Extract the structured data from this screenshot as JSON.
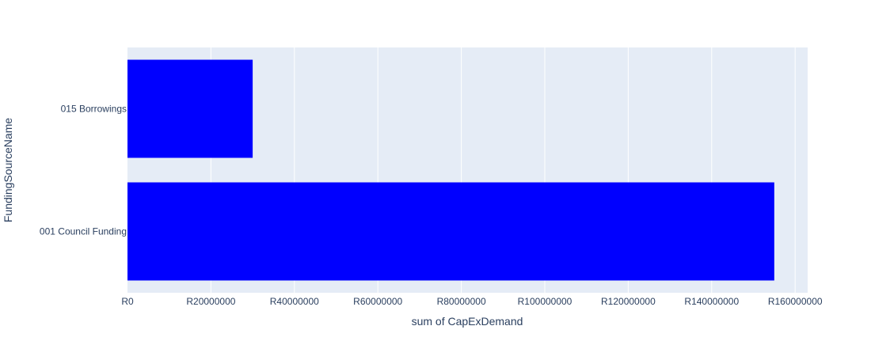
{
  "chart_data": {
    "type": "bar",
    "orientation": "horizontal",
    "categories": [
      "001 Council Funding",
      "015 Borrowings"
    ],
    "values": [
      155000000,
      30000000
    ],
    "xlabel": "sum of CapExDemand",
    "ylabel": "FundingSourceName",
    "xlim": [
      0,
      163000000
    ],
    "x_ticks": [
      0,
      20000000,
      40000000,
      60000000,
      80000000,
      100000000,
      120000000,
      140000000,
      160000000
    ],
    "x_tick_labels": [
      "R0",
      "R20000000",
      "R40000000",
      "R60000000",
      "R80000000",
      "R100000000",
      "R120000000",
      "R140000000",
      "R160000000"
    ],
    "grid": true,
    "colors": {
      "bar": "#0000ff",
      "plot_background": "#e5ecf6",
      "grid": "#ffffff",
      "text": "#2a3f5f"
    }
  }
}
